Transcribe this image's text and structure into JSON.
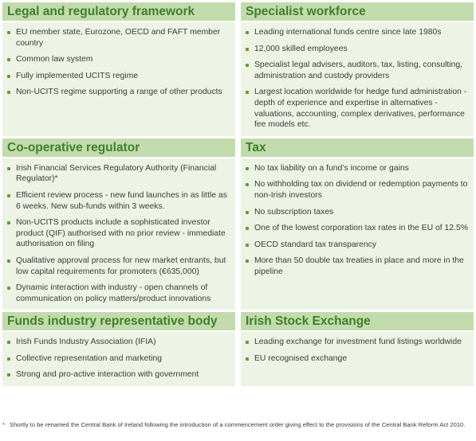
{
  "sections": [
    {
      "title": "Legal and regulatory framework",
      "items": [
        "EU member state, Eurozone, OECD and FAFT member country",
        "Common law system",
        "Fully implemented UCITS regime",
        "Non-UCITS regime supporting a range of other products"
      ]
    },
    {
      "title": "Specialist workforce",
      "items": [
        "Leading international funds centre since late 1980s",
        "12,000 skilled employees",
        "Specialist legal advisers, auditors, tax, listing, consulting, administration and custody providers",
        "Largest location worldwide for hedge fund administration - depth of experience and expertise in alternatives - valuations, accounting, complex derivatives, performance fee models etc."
      ]
    },
    {
      "title": "Co-operative regulator",
      "items": [
        "Irish Financial Services Regulatory Authority (Financial Regulator)*",
        "Efficient review process - new fund launches in as little as 6 weeks. New sub-funds within 3 weeks.",
        "Non-UCITS products include a sophisticated investor product (QIF) authorised with no prior review - immediate authorisation on filing",
        "Qualitative approval process for new market entrants, but low capital requirements for promoters (€635,000)",
        "Dynamic interaction with industry - open channels of communication on policy matters/product innovations"
      ]
    },
    {
      "title": "Tax",
      "items": [
        "No tax liability on a fund’s income or gains",
        "No withholding tax on dividend or redemption payments to non-Irish investors",
        "No subscription taxes",
        "One of the lowest corporation tax rates in the EU of 12.5%",
        "OECD standard tax transparency",
        "More than 50 double tax treaties in place and more in the pipeline"
      ]
    },
    {
      "title": "Funds industry representative body",
      "items": [
        "Irish Funds Industry Association (IFIA)",
        "Collective representation and marketing",
        "Strong and pro-active interaction with government"
      ]
    },
    {
      "title": "Irish Stock Exchange",
      "items": [
        "Leading exchange for investment fund listings worldwide",
        "EU recognised exchange"
      ]
    }
  ],
  "footnote": {
    "marker": "*",
    "text": "Shortly to be renamed the Central Bank of Ireland following the introduction of a commencement order giving effect to the provisions of the Central Bank Reform Act 2010."
  },
  "colors": {
    "header_bg": "#c2dbac",
    "header_text": "#3f7f2c",
    "body_bg": "#edf4e6",
    "bullet": "#5d9b3a"
  }
}
